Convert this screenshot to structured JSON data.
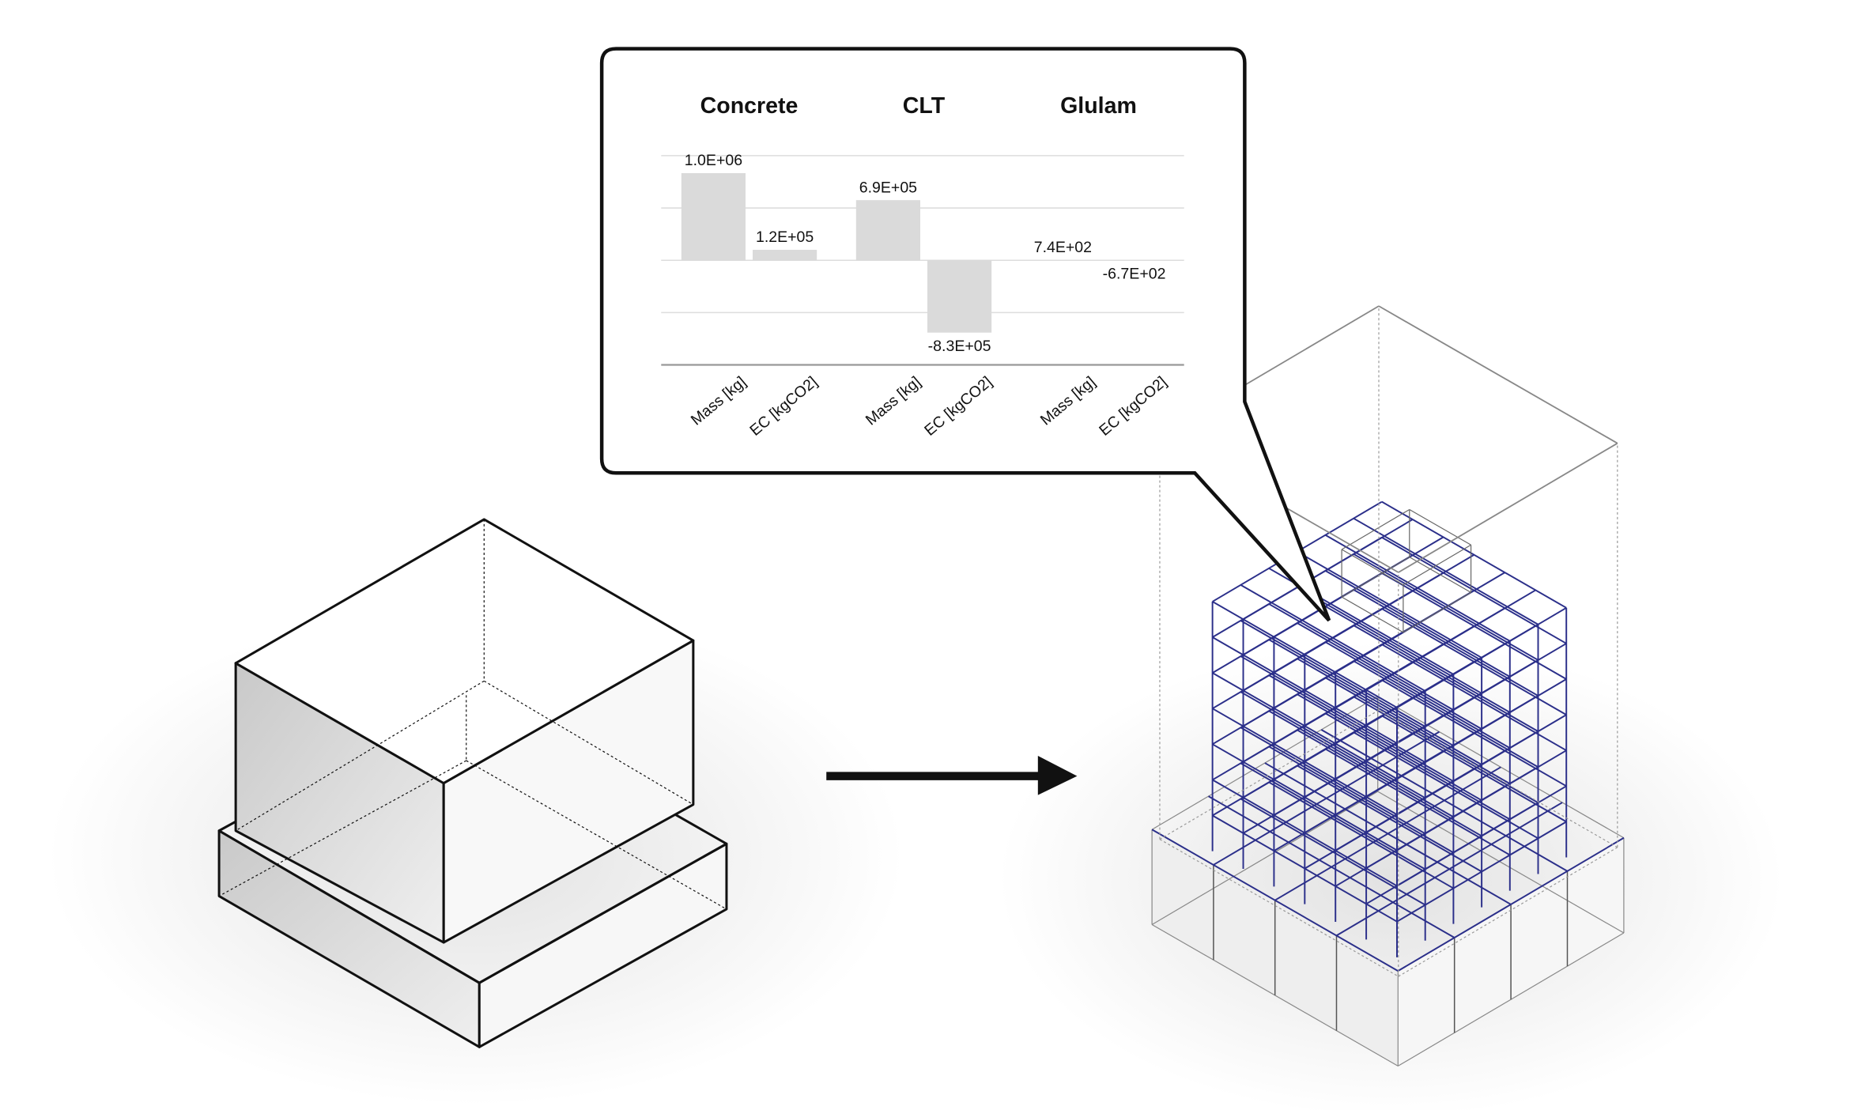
{
  "chart_data": {
    "type": "bar",
    "groups": [
      "Concrete",
      "CLT",
      "Glulam"
    ],
    "categories": [
      "Mass [kg]",
      "EC [kgCO2]",
      "Mass [kg]",
      "EC [kgCO2]",
      "Mass [kg]",
      "EC [kgCO2]"
    ],
    "values": [
      1000000,
      120000,
      690000,
      -830000,
      740,
      -670
    ],
    "value_labels": [
      "1.0E+06",
      "1.2E+05",
      "6.9E+05",
      "-8.3E+05",
      "7.4E+02",
      "-6.7E+02"
    ],
    "color": "#dadada",
    "ylim": [
      -1200000,
      1200000
    ],
    "yticks": [
      -1200000,
      -600000,
      0,
      600000,
      1200000
    ],
    "grid": true
  }
}
